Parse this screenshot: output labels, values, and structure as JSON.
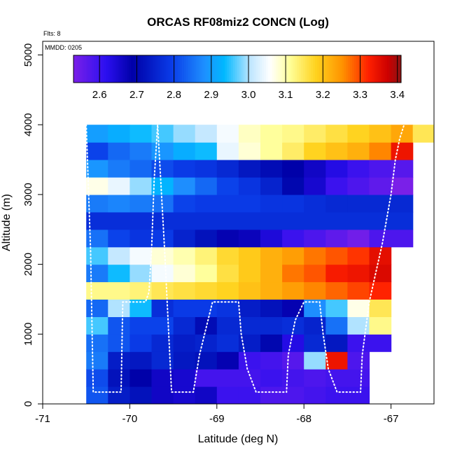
{
  "chart_data": {
    "type": "heatmap",
    "title": "ORCAS RF08miz2 CONCN (Log)",
    "xlabel": "Latitude (deg N)",
    "ylabel": "Altitude (m)",
    "flights_label": "Flts: 8",
    "date_label": "MMDD: 0205",
    "xlim": [
      -71,
      -66.5
    ],
    "ylim": [
      0,
      5200
    ],
    "x_ticks": [
      -71,
      -70,
      -69,
      -68,
      -67
    ],
    "x_tick_labels": [
      "-71",
      "-70",
      "-69",
      "-68",
      "-67"
    ],
    "y_ticks": [
      0,
      1000,
      2000,
      3000,
      4000,
      5000
    ],
    "y_tick_labels": [
      "0",
      "1000",
      "2000",
      "3000",
      "4000",
      "5000"
    ],
    "colorbar": {
      "range": [
        2.53,
        3.41
      ],
      "ticks": [
        2.6,
        2.7,
        2.8,
        2.9,
        3.0,
        3.1,
        3.2,
        3.3,
        3.4
      ],
      "tick_labels": [
        "2.6",
        "2.7",
        "2.8",
        "2.9",
        "3.0",
        "3.1",
        "3.2",
        "3.3",
        "3.4"
      ]
    },
    "grid": {
      "x_edges": [
        -70.5,
        -70.25,
        -70.0,
        -69.75,
        -69.5,
        -69.25,
        -69.0,
        -68.75,
        -68.5,
        -68.25,
        -68.0,
        -67.75,
        -67.5,
        -67.25,
        -67.0,
        -66.75,
        -66.5
      ],
      "y_edges": [
        0,
        250,
        500,
        750,
        1000,
        1250,
        1500,
        1750,
        2000,
        2250,
        2500,
        2750,
        3000,
        3250,
        3500,
        3750,
        4000
      ],
      "values": [
        [
          2.82,
          2.74,
          2.72,
          2.66,
          2.65,
          2.66,
          2.6,
          2.6,
          2.58,
          2.58,
          2.59,
          2.6,
          2.6,
          null,
          null,
          null
        ],
        [
          2.81,
          2.72,
          2.69,
          2.66,
          2.65,
          2.59,
          2.59,
          2.59,
          2.6,
          2.59,
          2.58,
          2.59,
          2.59,
          null,
          null,
          null
        ],
        [
          2.86,
          2.74,
          2.73,
          2.76,
          2.73,
          2.72,
          2.68,
          2.6,
          2.59,
          2.57,
          2.99,
          3.34,
          2.58,
          null,
          null,
          null
        ],
        [
          2.85,
          2.82,
          2.79,
          2.76,
          2.74,
          2.75,
          2.77,
          2.74,
          2.7,
          2.63,
          2.76,
          2.73,
          2.6,
          2.6,
          null,
          null
        ],
        [
          2.96,
          2.82,
          2.8,
          2.8,
          2.76,
          2.71,
          2.76,
          2.76,
          2.76,
          2.77,
          2.75,
          2.85,
          3.0,
          3.12,
          null,
          null
        ],
        [
          2.84,
          3.0,
          2.94,
          2.77,
          2.79,
          2.79,
          2.78,
          2.74,
          2.72,
          2.68,
          2.88,
          2.96,
          3.07,
          3.15,
          null,
          null
        ],
        [
          3.12,
          3.12,
          3.13,
          3.15,
          3.16,
          3.17,
          3.18,
          3.2,
          3.22,
          3.24,
          3.26,
          3.28,
          3.3,
          3.32,
          null,
          null
        ],
        [
          2.86,
          2.94,
          2.99,
          3.05,
          3.08,
          3.11,
          3.16,
          3.19,
          3.22,
          3.27,
          3.29,
          3.33,
          3.34,
          3.36,
          null,
          null
        ],
        [
          2.96,
          3.01,
          3.05,
          3.08,
          3.1,
          3.13,
          3.17,
          3.19,
          3.22,
          3.24,
          3.27,
          3.29,
          3.31,
          3.35,
          null,
          null
        ],
        [
          2.85,
          2.8,
          2.78,
          2.79,
          2.75,
          2.72,
          2.68,
          2.67,
          2.64,
          2.6,
          2.58,
          2.56,
          2.54,
          2.58,
          2.58,
          null
        ],
        [
          2.77,
          2.77,
          2.77,
          2.77,
          2.77,
          2.77,
          2.77,
          2.77,
          2.77,
          2.77,
          2.77,
          2.77,
          2.77,
          2.77,
          2.77,
          null
        ],
        [
          2.86,
          2.87,
          2.86,
          2.85,
          2.8,
          2.79,
          2.79,
          2.79,
          2.78,
          2.78,
          2.77,
          2.76,
          2.76,
          2.76,
          2.76,
          null
        ],
        [
          3.07,
          3.04,
          2.99,
          2.93,
          2.88,
          2.84,
          2.8,
          2.78,
          2.75,
          2.7,
          2.65,
          2.6,
          2.58,
          2.56,
          2.53,
          null
        ],
        [
          2.89,
          2.86,
          2.84,
          2.81,
          2.79,
          2.78,
          2.76,
          2.73,
          2.71,
          2.69,
          2.66,
          2.63,
          2.6,
          2.58,
          2.57,
          null
        ],
        [
          2.8,
          2.84,
          2.86,
          2.89,
          2.92,
          2.94,
          3.04,
          3.08,
          3.11,
          3.14,
          3.18,
          3.2,
          3.22,
          3.26,
          3.34,
          null
        ],
        [
          2.9,
          2.92,
          2.94,
          2.96,
          2.99,
          3.01,
          3.05,
          3.09,
          3.11,
          3.12,
          3.14,
          3.16,
          3.18,
          3.2,
          3.23,
          3.15
        ]
      ]
    },
    "flight_track": {
      "lat": [
        -70.5,
        -70.45,
        -70.42,
        -70.1,
        -70.08,
        -70.0,
        -69.9,
        -69.82,
        -69.78,
        -69.75,
        -69.72,
        -69.68,
        -69.6,
        -69.52,
        -69.48,
        -69.3,
        -69.27,
        -69.2,
        -69.05,
        -69.0,
        -68.95,
        -68.75,
        -68.72,
        -68.65,
        -68.55,
        -68.47,
        -68.42,
        -68.2,
        -68.18,
        -68.1,
        -68.0,
        -67.9,
        -67.85,
        -67.82,
        -67.78,
        -67.72,
        -67.62,
        -67.57,
        -67.55,
        -67.35,
        -67.33,
        -67.25,
        -67.1,
        -67.0,
        -66.95,
        -66.9,
        -66.85
      ],
      "alt": [
        4000,
        2200,
        170,
        170,
        1460,
        1460,
        1460,
        1460,
        1600,
        2200,
        3200,
        4000,
        2200,
        170,
        170,
        170,
        170,
        700,
        1460,
        1460,
        1460,
        1460,
        1000,
        500,
        170,
        170,
        170,
        170,
        700,
        1200,
        1460,
        1460,
        1460,
        1460,
        1000,
        500,
        170,
        170,
        170,
        170,
        700,
        1460,
        2300,
        3000,
        3500,
        3800,
        4000
      ]
    }
  }
}
